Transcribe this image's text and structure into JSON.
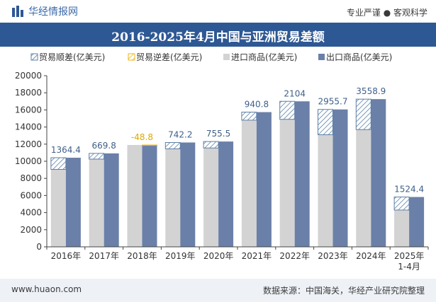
{
  "header": {
    "brand": "华经情报网",
    "tagline": "专业严谨 ● 客观科学"
  },
  "footer": {
    "url": "www.huaon.com",
    "source": "数据来源：中国海关，华经产业研究院整理"
  },
  "colors": {
    "header_bg": "#2e5894",
    "import": "#d3d3d3",
    "export": "#6b80a8",
    "surplus_stroke": "#5b7fa6",
    "deficit_stroke": "#e8b61d",
    "surplus_label": "#3f5f8a",
    "deficit_label": "#e0a800"
  },
  "chart_data": {
    "type": "bar",
    "title": "2016-2025年4月中国与亚洲贸易差额",
    "categories": [
      "2016年",
      "2017年",
      "2018年",
      "2019年",
      "2020年",
      "2021年",
      "2022年",
      "2023年",
      "2024年",
      "2025年\n1-4月"
    ],
    "series": [
      {
        "name": "贸易顺差(亿美元)",
        "values": [
          1364.4,
          669.8,
          null,
          742.2,
          755.5,
          940.8,
          2104,
          2955.7,
          3558.9,
          1524.4
        ]
      },
      {
        "name": "贸易逆差(亿美元)",
        "values": [
          null,
          null,
          -48.8,
          null,
          null,
          null,
          null,
          null,
          null,
          null
        ]
      },
      {
        "name": "进口商品(亿美元)",
        "values": [
          9050,
          10250,
          11900,
          11450,
          11550,
          14800,
          14900,
          13100,
          13700,
          4300
        ]
      },
      {
        "name": "出口商品(亿美元)",
        "values": [
          10414.4,
          10919.8,
          11851.2,
          12192.2,
          12305.5,
          15740.8,
          17004,
          16055.7,
          17258.9,
          5824.4
        ]
      }
    ],
    "data_labels": [
      "1364.4",
      "669.8",
      "-48.8",
      "742.2",
      "755.5",
      "940.8",
      "2104",
      "2955.7",
      "3558.9",
      "1524.4"
    ],
    "yticks": [
      "0",
      "2000",
      "4000",
      "6000",
      "8000",
      "10000",
      "12000",
      "14000",
      "16000",
      "18000",
      "20000"
    ],
    "ylim": [
      0,
      20000
    ],
    "legend_position": "top",
    "grid": false
  }
}
